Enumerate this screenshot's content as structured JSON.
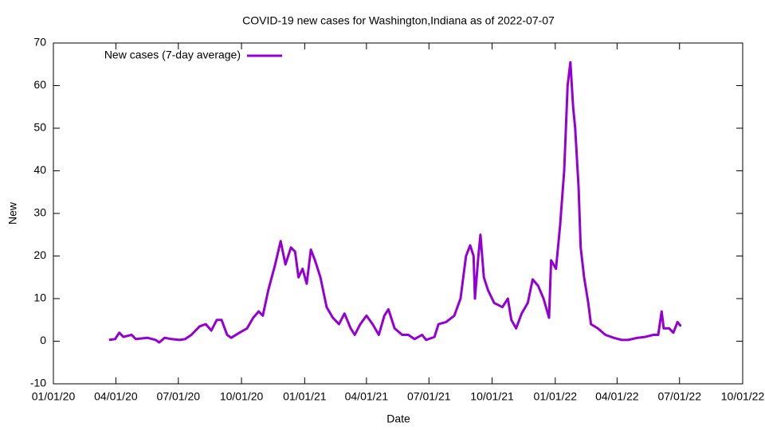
{
  "chart_data": {
    "type": "line",
    "title": "COVID-19 new cases for Washington,Indiana as of 2022-07-07",
    "x_label": "Date",
    "y_label": "New",
    "legend": "top-left",
    "xlim": [
      "2020-01-01",
      "2022-10-01"
    ],
    "xticks": [
      {
        "value": "2020-01-01",
        "label": "01/01/20"
      },
      {
        "value": "2020-04-01",
        "label": "04/01/20"
      },
      {
        "value": "2020-07-01",
        "label": "07/01/20"
      },
      {
        "value": "2020-10-01",
        "label": "10/01/20"
      },
      {
        "value": "2021-01-01",
        "label": "01/01/21"
      },
      {
        "value": "2021-04-01",
        "label": "04/01/21"
      },
      {
        "value": "2021-07-01",
        "label": "07/01/21"
      },
      {
        "value": "2021-10-01",
        "label": "10/01/21"
      },
      {
        "value": "2022-01-01",
        "label": "01/01/22"
      },
      {
        "value": "2022-04-01",
        "label": "04/01/22"
      },
      {
        "value": "2022-07-01",
        "label": "07/01/22"
      },
      {
        "value": "2022-10-01",
        "label": "10/01/22"
      }
    ],
    "ylim": [
      -10,
      70
    ],
    "yticks": [
      -10,
      0,
      10,
      20,
      30,
      40,
      50,
      60,
      70
    ],
    "x": [
      "2020-03-22",
      "2020-03-31",
      "2020-04-06",
      "2020-04-12",
      "2020-04-24",
      "2020-04-30",
      "2020-05-17",
      "2020-05-29",
      "2020-06-03",
      "2020-06-11",
      "2020-06-21",
      "2020-07-03",
      "2020-07-11",
      "2020-07-20",
      "2020-08-01",
      "2020-08-10",
      "2020-08-18",
      "2020-08-26",
      "2020-09-02",
      "2020-09-10",
      "2020-09-16",
      "2020-09-28",
      "2020-10-09",
      "2020-10-18",
      "2020-10-26",
      "2020-11-01",
      "2020-11-09",
      "2020-11-19",
      "2020-11-27",
      "2020-12-04",
      "2020-12-12",
      "2020-12-18",
      "2020-12-23",
      "2020-12-29",
      "2021-01-04",
      "2021-01-10",
      "2021-01-16",
      "2021-01-24",
      "2021-02-02",
      "2021-02-11",
      "2021-02-20",
      "2021-02-28",
      "2021-03-09",
      "2021-03-15",
      "2021-03-23",
      "2021-04-01",
      "2021-04-10",
      "2021-04-19",
      "2021-04-27",
      "2021-05-03",
      "2021-05-12",
      "2021-05-23",
      "2021-06-01",
      "2021-06-10",
      "2021-06-21",
      "2021-06-27",
      "2021-07-09",
      "2021-07-15",
      "2021-07-26",
      "2021-08-07",
      "2021-08-16",
      "2021-08-24",
      "2021-08-30",
      "2021-09-04",
      "2021-09-06",
      "2021-09-11",
      "2021-09-14",
      "2021-09-19",
      "2021-09-25",
      "2021-10-04",
      "2021-10-16",
      "2021-10-24",
      "2021-10-29",
      "2021-11-05",
      "2021-11-13",
      "2021-11-22",
      "2021-11-29",
      "2021-12-07",
      "2021-12-15",
      "2021-12-23",
      "2021-12-26",
      "2022-01-02",
      "2022-01-08",
      "2022-01-14",
      "2022-01-19",
      "2022-01-23",
      "2022-01-27",
      "2022-01-30",
      "2022-02-04",
      "2022-02-07",
      "2022-02-12",
      "2022-02-18",
      "2022-02-22",
      "2022-03-04",
      "2022-03-15",
      "2022-03-27",
      "2022-04-08",
      "2022-04-17",
      "2022-05-01",
      "2022-05-12",
      "2022-05-24",
      "2022-05-31",
      "2022-06-05",
      "2022-06-08",
      "2022-06-16",
      "2022-06-22",
      "2022-06-28",
      "2022-07-03"
    ],
    "series": [
      {
        "name": "New cases (7-day average)",
        "color": "#9400d3",
        "values": [
          0.3,
          0.5,
          2,
          1,
          1.5,
          0.5,
          0.8,
          0.3,
          -0.3,
          0.8,
          0.5,
          0.3,
          0.5,
          1.5,
          3.5,
          4,
          2.5,
          5,
          5,
          1.5,
          0.8,
          2,
          3,
          5.5,
          7,
          6,
          12,
          18,
          23.5,
          18,
          22,
          21,
          15,
          17,
          13.5,
          21.5,
          19,
          15,
          8,
          5.5,
          4,
          6.5,
          3,
          1.5,
          4,
          6,
          4,
          1.5,
          6,
          7.5,
          3,
          1.5,
          1.5,
          0.5,
          1.5,
          0.3,
          1,
          4,
          4.5,
          6,
          10,
          20,
          22.5,
          20,
          10,
          20,
          25,
          15,
          12,
          9,
          8,
          10,
          5,
          3,
          6.5,
          9,
          14.5,
          13,
          10,
          5.5,
          19,
          17,
          27,
          40,
          60,
          65.5,
          55,
          50,
          36,
          22,
          15,
          9,
          4,
          3,
          1.5,
          0.8,
          0.3,
          0.3,
          0.8,
          1,
          1.5,
          1.5,
          7,
          3,
          3,
          2,
          4.5,
          3.5
        ]
      }
    ]
  }
}
